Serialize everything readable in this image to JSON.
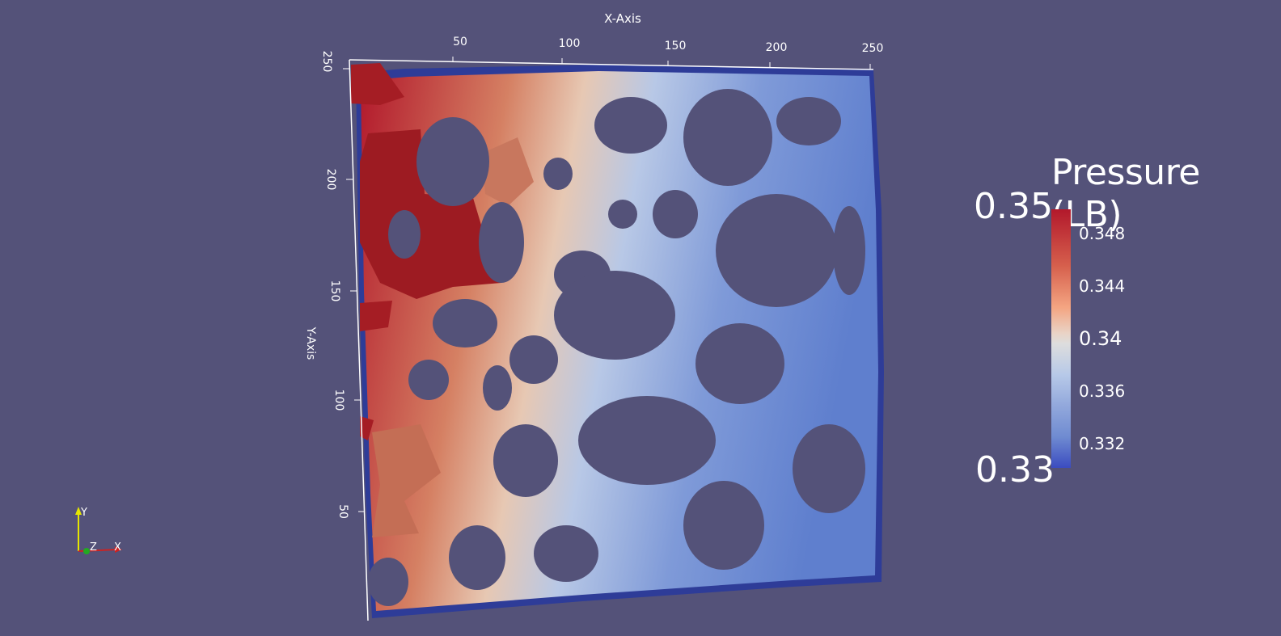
{
  "axes": {
    "x_title": "X-Axis",
    "y_title": "Y-Axis",
    "x_ticks": [
      "50",
      "100",
      "150",
      "200",
      "250"
    ],
    "y_ticks": [
      "250",
      "200",
      "150",
      "100",
      "50"
    ]
  },
  "orientation_widget": {
    "y": "Y",
    "z": "Z",
    "x": "X"
  },
  "legend": {
    "title": "Pressure (LB)",
    "max": "0.35",
    "min": "0.33",
    "labels": [
      "0.348",
      "0.344",
      "0.34",
      "0.336",
      "0.332"
    ]
  },
  "colors": {
    "background": "#545279",
    "high": "#b2182b",
    "mid": "#dddddd",
    "low": "#3b4cc0",
    "solid_edge": "#2e3c98"
  }
}
